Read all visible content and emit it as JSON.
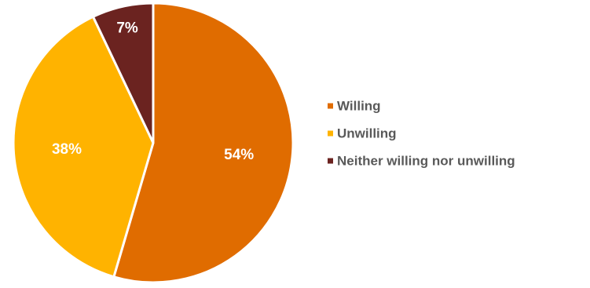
{
  "chart_data": {
    "type": "pie",
    "start": "top",
    "direction": "clockwise",
    "legend_position": "right",
    "slices": [
      {
        "label": "Willing",
        "value": 54,
        "display": "54%",
        "color": "#E06C00"
      },
      {
        "label": "Unwilling",
        "value": 38,
        "display": "38%",
        "color": "#FFB300"
      },
      {
        "label": "Neither willing nor unwilling",
        "value": 7,
        "display": "7%",
        "color": "#6B2320"
      }
    ]
  }
}
